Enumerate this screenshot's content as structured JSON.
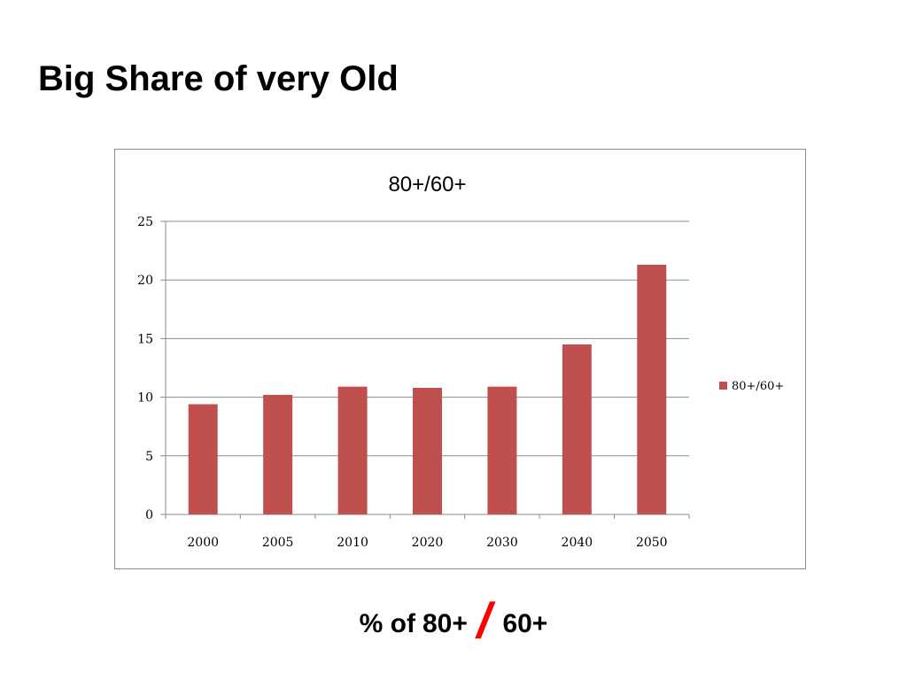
{
  "slide": {
    "title": "Big Share of very Old",
    "caption": {
      "left": "% of",
      "mid": "80+",
      "slash": "/",
      "right": "60+"
    }
  },
  "colors": {
    "bar": "#c0504d",
    "gridline": "#8c8c8c",
    "slash": "#ff0000"
  },
  "chart_data": {
    "type": "bar",
    "title": "80+/60+",
    "categories": [
      "2000",
      "2005",
      "2010",
      "2020",
      "2030",
      "2040",
      "2050"
    ],
    "series": [
      {
        "name": "80+/60+",
        "values": [
          9.4,
          10.2,
          10.9,
          10.8,
          10.9,
          14.5,
          21.3
        ]
      }
    ],
    "ylim": [
      0,
      25
    ],
    "yticks": [
      "0",
      "5",
      "10",
      "15",
      "20",
      "25"
    ],
    "grid": true,
    "legend": "right"
  }
}
